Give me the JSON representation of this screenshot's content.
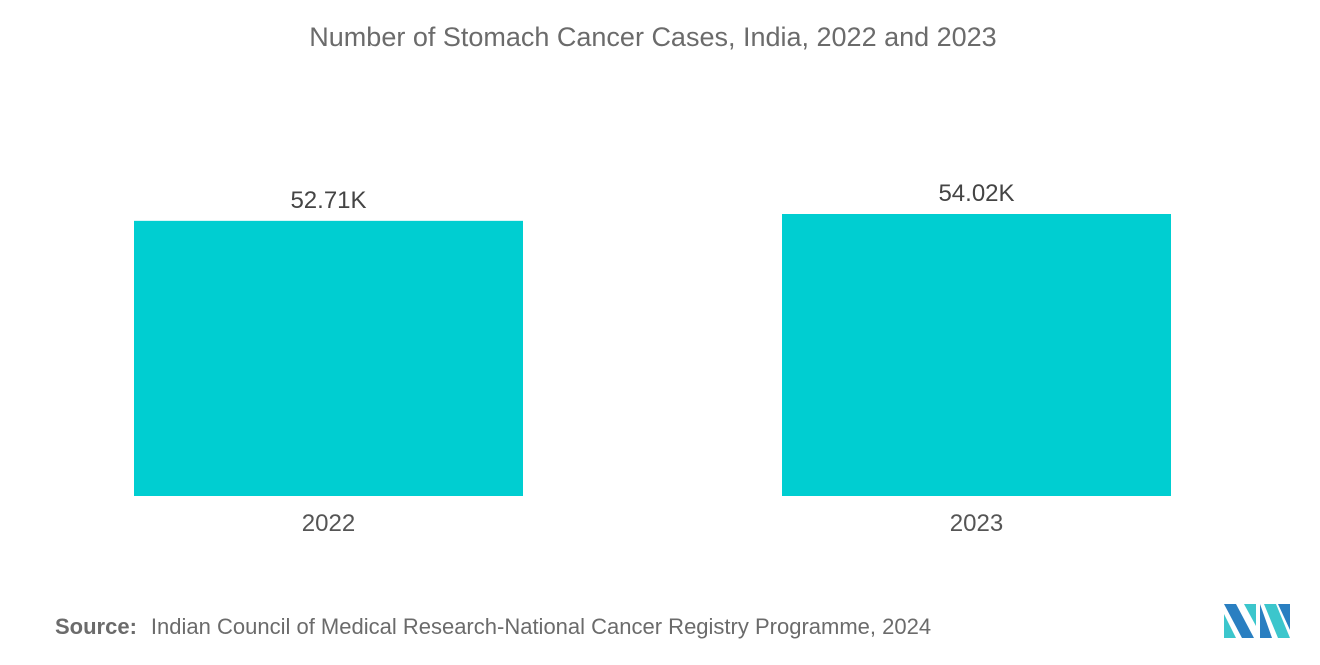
{
  "chart_data": {
    "type": "bar",
    "title": "Number of Stomach Cancer Cases, India, 2022 and 2023",
    "categories": [
      "2022",
      "2023"
    ],
    "values": [
      52.71,
      54.02
    ],
    "data_labels": [
      "52.71K",
      "54.02K"
    ],
    "unit": "K",
    "xlabel": "",
    "ylabel": "",
    "ylim": [
      0,
      54.02
    ],
    "grid": false,
    "legend": "none",
    "bar_color": "#00CED1"
  },
  "source": {
    "label": "Source:",
    "text": "Indian Council of Medical Research-National Cancer Registry Programme, 2024"
  },
  "logo": {
    "colors": [
      "#2A7FC1",
      "#3CC6CC"
    ]
  }
}
